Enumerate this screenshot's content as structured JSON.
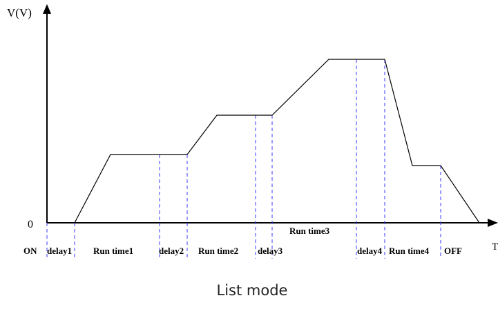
{
  "axes": {
    "y_label": "V(V)",
    "x_label": "T",
    "origin_label": "0"
  },
  "segments": [
    {
      "id": "on",
      "label": "ON"
    },
    {
      "id": "delay1",
      "label": "delay1"
    },
    {
      "id": "run1",
      "label": "Run time1"
    },
    {
      "id": "delay2",
      "label": "delay2"
    },
    {
      "id": "run2",
      "label": "Run time2"
    },
    {
      "id": "delay3",
      "label": "delay3"
    },
    {
      "id": "run3",
      "label": "Run time3"
    },
    {
      "id": "delay4",
      "label": "delay4"
    },
    {
      "id": "run4",
      "label": "Run time4"
    },
    {
      "id": "off",
      "label": "OFF"
    }
  ],
  "caption": "List mode",
  "colors": {
    "waveform": "#000000",
    "markers": "#3a3aff",
    "axis": "#000000"
  }
}
